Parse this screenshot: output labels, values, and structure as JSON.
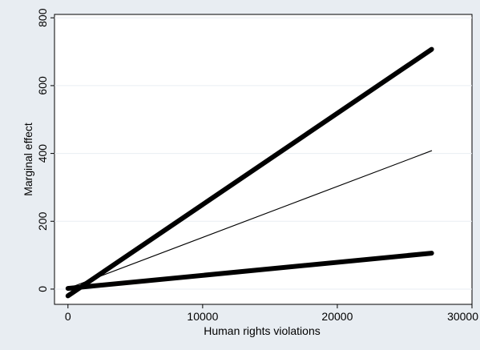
{
  "chart_data": {
    "type": "line",
    "title": "",
    "xlabel": "Human rights violations",
    "ylabel": "Marginal effect",
    "xlim": [
      -1000,
      30000
    ],
    "ylim": [
      -45,
      810
    ],
    "xticks": [
      0,
      10000,
      20000,
      30000
    ],
    "xtick_labels": [
      "0",
      "10000",
      "20000",
      "30000"
    ],
    "yticks": [
      0,
      200,
      400,
      600,
      800
    ],
    "ytick_labels": [
      "0",
      "200",
      "400",
      "600",
      "800"
    ],
    "grid": true,
    "legend": "none",
    "series": [
      {
        "x": [
          0,
          27000
        ],
        "y": [
          -20,
          707
        ],
        "style": "thick",
        "color": "#000000"
      },
      {
        "x": [
          0,
          27000
        ],
        "y": [
          2,
          408
        ],
        "style": "thin",
        "color": "#000000"
      },
      {
        "x": [
          0,
          27000
        ],
        "y": [
          2,
          106
        ],
        "style": "thick",
        "color": "#000000"
      }
    ]
  }
}
